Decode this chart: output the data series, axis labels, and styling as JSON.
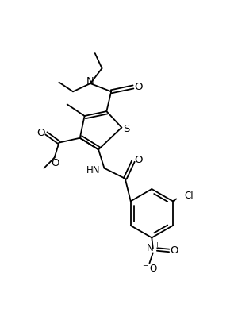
{
  "bg_color": "#ffffff",
  "line_color": "#000000",
  "line_width": 1.3,
  "font_size": 8.5,
  "fig_width": 2.95,
  "fig_height": 4.03,
  "dpi": 100,
  "xlim": [
    0,
    10
  ],
  "ylim": [
    0,
    13.6
  ]
}
